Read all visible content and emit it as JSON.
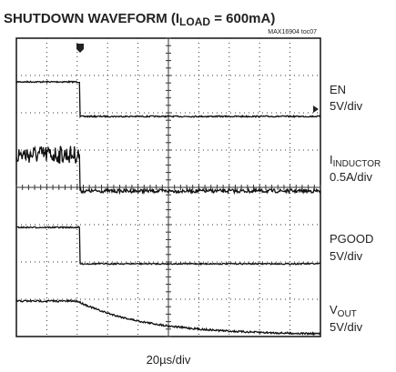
{
  "header": {
    "title": {
      "main": "SHUTDOWN WAVEFORM (I",
      "sub": "LOAD",
      "rest": " = 600mA)"
    },
    "note": "MAX16904 toc07"
  },
  "channels": [
    {
      "name": "EN",
      "scale": "5V/div"
    },
    {
      "name": "I",
      "sub": "INDUCTOR",
      "scale": "0.5A/div"
    },
    {
      "name": "PGOOD",
      "scale": "5V/div"
    },
    {
      "name": "V",
      "sub": "OUT",
      "scale": "5V/div"
    }
  ],
  "timebase": "20µs/div"
}
